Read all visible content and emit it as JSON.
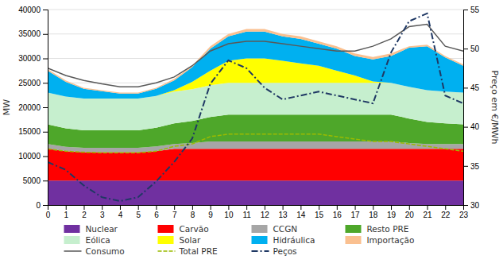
{
  "chart_data": {
    "type": "area",
    "stacked": true,
    "x": [
      0,
      1,
      2,
      3,
      4,
      5,
      6,
      7,
      8,
      9,
      10,
      11,
      12,
      13,
      14,
      15,
      16,
      17,
      18,
      19,
      20,
      21,
      22,
      23
    ],
    "xlim": [
      0,
      23
    ],
    "xticks": [
      0,
      1,
      2,
      3,
      4,
      5,
      6,
      7,
      8,
      9,
      10,
      11,
      12,
      13,
      14,
      15,
      16,
      17,
      18,
      19,
      20,
      21,
      22,
      23
    ],
    "ylim": [
      0,
      40000
    ],
    "yticks": [
      0,
      5000,
      10000,
      15000,
      20000,
      25000,
      30000,
      35000,
      40000
    ],
    "y2lim": [
      30,
      55
    ],
    "y2ticks": [
      30,
      35,
      40,
      45,
      50,
      55
    ],
    "ylabel": "MW",
    "y2label": "Preço em €/MWh",
    "grid": "y",
    "legend": "bottom",
    "series": [
      {
        "name": "Nuclear",
        "type": "area",
        "color": "#7030A0",
        "values": [
          5000,
          5000,
          5000,
          5000,
          5000,
          5000,
          5000,
          5000,
          5000,
          5000,
          5000,
          5000,
          5000,
          5000,
          5000,
          5000,
          5000,
          5000,
          5000,
          5000,
          5000,
          5000,
          5000,
          5000
        ]
      },
      {
        "name": "Carvão",
        "type": "area",
        "color": "#FF0000",
        "values": [
          6500,
          6000,
          5800,
          5800,
          5800,
          5800,
          6000,
          6500,
          6500,
          6500,
          6500,
          6500,
          6500,
          6500,
          6500,
          6500,
          6500,
          6500,
          6500,
          6500,
          6500,
          6500,
          6500,
          6500
        ]
      },
      {
        "name": "CCGN",
        "type": "area",
        "color": "#A6A6A6",
        "values": [
          1000,
          900,
          900,
          900,
          900,
          900,
          1000,
          1000,
          1200,
          1500,
          1500,
          1500,
          1500,
          1500,
          1500,
          1500,
          1500,
          1500,
          1500,
          1500,
          1200,
          1000,
          1000,
          1000
        ]
      },
      {
        "name": "Resto PRE",
        "type": "area",
        "color": "#4EA72A",
        "values": [
          4000,
          3800,
          3600,
          3600,
          3600,
          3600,
          3800,
          4200,
          4500,
          5000,
          5500,
          5500,
          5500,
          5500,
          5500,
          5500,
          5500,
          5500,
          5500,
          5500,
          5000,
          4500,
          4200,
          4000
        ]
      },
      {
        "name": "Eólica",
        "type": "area",
        "color": "#C6EFCE",
        "values": [
          6500,
          6500,
          6500,
          6500,
          6500,
          6500,
          6500,
          6500,
          6500,
          6500,
          6500,
          6500,
          6500,
          6500,
          6500,
          6500,
          6500,
          6500,
          6500,
          6500,
          6500,
          6500,
          6500,
          6500
        ]
      },
      {
        "name": "Solar",
        "type": "area",
        "color": "#FFFF00",
        "values": [
          0,
          0,
          0,
          0,
          0,
          0,
          0,
          300,
          1500,
          3000,
          4500,
          5000,
          5000,
          4500,
          4000,
          3500,
          2500,
          1500,
          300,
          0,
          0,
          0,
          0,
          0
        ]
      },
      {
        "name": "Hidráulica",
        "type": "area",
        "color": "#00B0F0",
        "values": [
          4500,
          3000,
          2000,
          1500,
          1000,
          1000,
          1500,
          2000,
          3000,
          4500,
          5000,
          5500,
          5500,
          5000,
          5000,
          4500,
          4500,
          4000,
          4500,
          5500,
          8000,
          9000,
          7000,
          5500
        ]
      },
      {
        "name": "Importação",
        "type": "area",
        "color": "#FAC090",
        "values": [
          300,
          300,
          200,
          200,
          200,
          200,
          200,
          300,
          300,
          500,
          500,
          500,
          500,
          500,
          500,
          500,
          500,
          500,
          500,
          500,
          300,
          300,
          300,
          300
        ]
      },
      {
        "name": "Consumo",
        "type": "line",
        "color": "#595959",
        "line_style": "solid",
        "values": [
          28000,
          26500,
          25500,
          24800,
          24200,
          24200,
          25000,
          26200,
          28500,
          31500,
          33000,
          33500,
          33500,
          33000,
          32500,
          32000,
          31500,
          31500,
          32500,
          34000,
          36500,
          37000,
          32500,
          31500
        ]
      },
      {
        "name": "Total PRE",
        "type": "line",
        "color": "#9BBB00",
        "line_style": "dashed",
        "values": [
          11500,
          11000,
          10800,
          10700,
          10700,
          10700,
          11000,
          12000,
          12500,
          14000,
          14500,
          14500,
          14500,
          14500,
          14500,
          14500,
          14000,
          13500,
          13000,
          13000,
          12500,
          12000,
          11500,
          11000
        ]
      },
      {
        "name": "Peços",
        "type": "line",
        "color": "#1F3864",
        "line_style": "dashdot",
        "axis": "y2",
        "values": [
          35.5,
          34.5,
          32.5,
          31.0,
          30.5,
          31.0,
          33.0,
          35.5,
          38.5,
          45.5,
          48.5,
          47.5,
          45.0,
          43.5,
          44.0,
          44.5,
          44.0,
          43.5,
          43.0,
          49.5,
          53.5,
          54.5,
          44.0,
          43.0
        ]
      }
    ]
  }
}
